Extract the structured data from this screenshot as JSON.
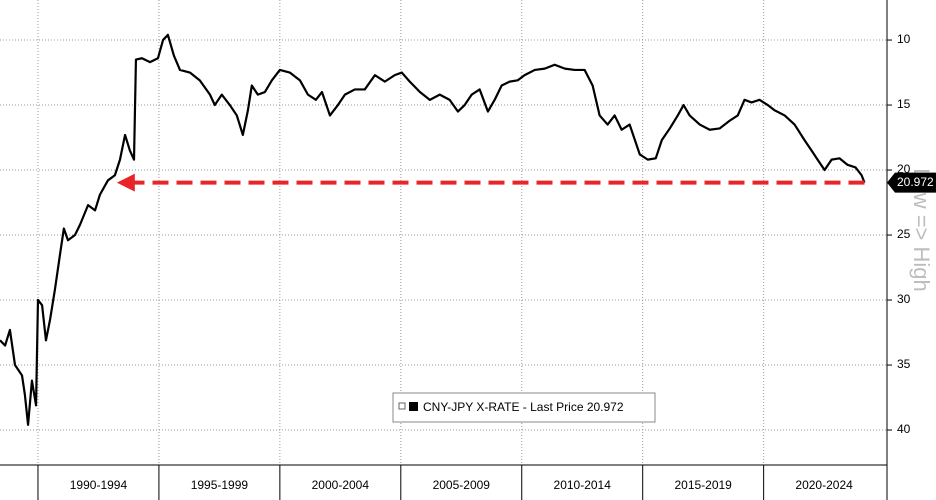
{
  "chart_data": {
    "type": "line",
    "y_axis_title": "Low => High",
    "inverted": true,
    "ylim": [
      6.92,
      42.69
    ],
    "yticks": [
      10,
      15,
      20,
      25,
      30,
      35,
      40
    ],
    "xlim": [
      1988.43,
      2025.1
    ],
    "xticks": [
      {
        "value": 1992.5,
        "label": "1990-1994"
      },
      {
        "value": 1997.5,
        "label": "1995-1999"
      },
      {
        "value": 2002.5,
        "label": "2000-2004"
      },
      {
        "value": 2007.5,
        "label": "2005-2009"
      },
      {
        "value": 2012.5,
        "label": "2010-2014"
      },
      {
        "value": 2017.5,
        "label": "2015-2019"
      },
      {
        "value": 2022.5,
        "label": "2020-2024"
      }
    ],
    "xgrid": [
      1990,
      1995,
      2000,
      2005,
      2010,
      2015,
      2020
    ],
    "grid": true,
    "x": [
      1988.43,
      1988.64,
      1988.84,
      1989.05,
      1989.34,
      1989.46,
      1989.59,
      1989.75,
      1989.92,
      1990.0,
      1990.17,
      1990.33,
      1990.5,
      1990.7,
      1990.91,
      1991.07,
      1991.24,
      1991.53,
      1991.74,
      1992.07,
      1992.36,
      1992.56,
      1992.89,
      1993.18,
      1993.39,
      1993.6,
      1993.8,
      1993.97,
      1994.05,
      1994.3,
      1994.63,
      1994.96,
      1995.17,
      1995.37,
      1995.62,
      1995.87,
      1996.28,
      1996.69,
      1997.11,
      1997.31,
      1997.6,
      1997.93,
      1998.22,
      1998.47,
      1998.68,
      1998.84,
      1999.09,
      1999.38,
      1999.67,
      2000.0,
      2000.41,
      2000.83,
      2001.16,
      2001.49,
      2001.74,
      2002.07,
      2002.4,
      2002.69,
      2003.1,
      2003.51,
      2003.93,
      2004.34,
      2004.75,
      2005.04,
      2005.37,
      2005.79,
      2006.2,
      2006.61,
      2007.02,
      2007.36,
      2007.64,
      2007.93,
      2008.26,
      2008.6,
      2008.88,
      2009.17,
      2009.5,
      2009.83,
      2010.12,
      2010.54,
      2010.95,
      2011.36,
      2011.78,
      2012.19,
      2012.6,
      2012.93,
      2013.22,
      2013.55,
      2013.84,
      2014.13,
      2014.46,
      2014.88,
      2015.21,
      2015.54,
      2015.79,
      2016.12,
      2016.45,
      2016.69,
      2016.94,
      2017.36,
      2017.77,
      2018.18,
      2018.6,
      2018.93,
      2019.21,
      2019.5,
      2019.83,
      2020.17,
      2020.45,
      2020.87,
      2021.28,
      2021.69,
      2021.98,
      2022.23,
      2022.52,
      2022.81,
      2023.14,
      2023.47,
      2023.8,
      2024.05,
      2024.17
    ],
    "series": [
      {
        "name": "CNY-JPY X-RATE - Last Price 20.972",
        "color": "#000000",
        "values": [
          33.1,
          33.5,
          32.3,
          35.0,
          35.8,
          37.3,
          39.6,
          36.2,
          38.1,
          30.0,
          30.4,
          33.1,
          31.5,
          29.2,
          26.5,
          24.5,
          25.4,
          25.0,
          24.2,
          22.7,
          23.1,
          21.9,
          20.8,
          20.4,
          19.2,
          17.3,
          18.5,
          19.2,
          11.5,
          11.4,
          11.7,
          11.4,
          10.0,
          9.6,
          11.2,
          12.3,
          12.5,
          13.1,
          14.2,
          15.0,
          14.2,
          15.0,
          15.8,
          17.3,
          15.4,
          13.5,
          14.2,
          14.0,
          13.1,
          12.3,
          12.5,
          13.1,
          14.2,
          14.6,
          14.0,
          15.8,
          15.0,
          14.2,
          13.8,
          13.8,
          12.7,
          13.2,
          12.7,
          12.5,
          13.2,
          14.0,
          14.6,
          14.2,
          14.6,
          15.5,
          15.0,
          14.2,
          13.8,
          15.5,
          14.6,
          13.5,
          13.2,
          13.1,
          12.7,
          12.3,
          12.2,
          11.9,
          12.2,
          12.3,
          12.3,
          13.5,
          15.8,
          16.5,
          15.8,
          16.9,
          16.5,
          18.8,
          19.2,
          19.1,
          17.7,
          16.8,
          15.8,
          15.0,
          15.8,
          16.5,
          16.9,
          16.8,
          16.2,
          15.8,
          14.6,
          14.8,
          14.6,
          15.0,
          15.4,
          15.8,
          16.5,
          17.7,
          18.5,
          19.2,
          20.0,
          19.2,
          19.1,
          19.6,
          19.8,
          20.4,
          20.972
        ]
      }
    ],
    "last_price": 20.972,
    "arrow": {
      "x_from": 2024.17,
      "x_to": 1993.26,
      "y": 20.972,
      "color": "#e8262a"
    }
  }
}
